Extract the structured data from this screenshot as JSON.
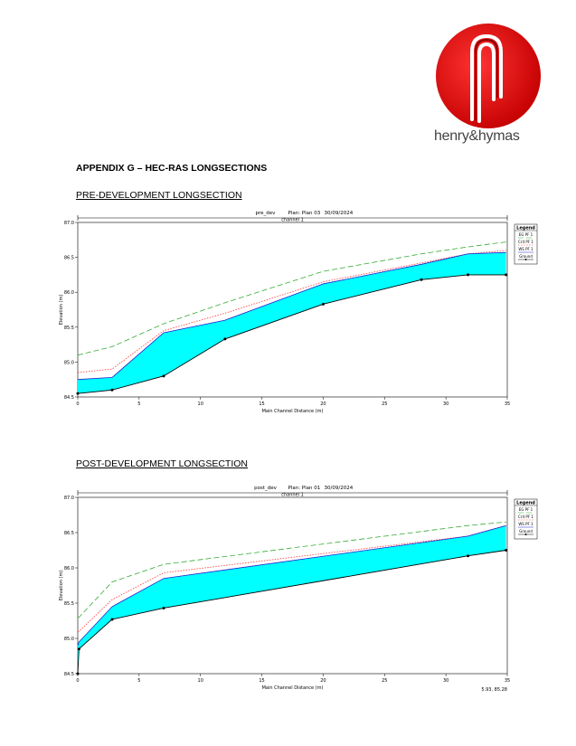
{
  "brand": {
    "name": "henry&hymas"
  },
  "heading": "APPENDIX G – HEC-RAS LONGSECTIONS",
  "sections": [
    {
      "title": "PRE-DEVELOPMENT LONGSECTION"
    },
    {
      "title": "POST-DEVELOPMENT LONGSECTION"
    }
  ],
  "chart_data": [
    {
      "type": "line",
      "header": {
        "plan_name": "pre_dev",
        "plan": "Plan: Plan 03",
        "date": "30/09/2024"
      },
      "channel_label": "channel 1",
      "xlabel": "Main Channel Distance (m)",
      "ylabel": "Elevation (m)",
      "xlim": [
        0,
        35
      ],
      "ylim": [
        84.5,
        87.0
      ],
      "xticks": [
        "0",
        "5",
        "10",
        "15",
        "20",
        "25",
        "30",
        "35"
      ],
      "yticks": [
        "84.5",
        "85.0",
        "85.5",
        "86.0",
        "86.5",
        "87.0"
      ],
      "legend_title": "Legend",
      "legend_position": "top-right",
      "series": [
        {
          "name": "EG PF 1",
          "color": "#33aa33",
          "style": "long-dash",
          "x": [
            0,
            2.8,
            7,
            12,
            20,
            28,
            31.8,
            34.9
          ],
          "y": [
            85.1,
            85.22,
            85.55,
            85.85,
            86.3,
            86.55,
            86.65,
            86.72
          ]
        },
        {
          "name": "Crit PF 1",
          "color": "#ff3333",
          "style": "dotted",
          "x": [
            0,
            2.8,
            7,
            12,
            20,
            28,
            31.8,
            34.9
          ],
          "y": [
            84.85,
            84.9,
            85.45,
            85.7,
            86.15,
            86.42,
            86.55,
            86.6
          ]
        },
        {
          "name": "WS PF 1",
          "color": "#2222cc",
          "style": "solid",
          "x": [
            0,
            2.8,
            7,
            12,
            20,
            28,
            31.8,
            34.9
          ],
          "y": [
            84.75,
            84.78,
            85.42,
            85.6,
            86.12,
            86.4,
            86.55,
            86.57
          ]
        },
        {
          "name": "Ground",
          "color": "#000000",
          "style": "solid-marker",
          "x": [
            0,
            2.8,
            7,
            12,
            20,
            28,
            31.8,
            34.9
          ],
          "y": [
            84.55,
            84.6,
            84.8,
            85.33,
            85.83,
            86.18,
            86.25,
            86.25
          ]
        }
      ],
      "fill_between": [
        "Ground",
        "WS PF 1"
      ],
      "fill_color": "#00ffff"
    },
    {
      "type": "line",
      "header": {
        "plan_name": "post_dev",
        "plan": "Plan: Plan 01",
        "date": "30/09/2024"
      },
      "channel_label": "channel 1",
      "xlabel": "Main Channel Distance (m)",
      "ylabel": "Elevation (m)",
      "xlim": [
        0,
        35
      ],
      "ylim": [
        84.5,
        87.0
      ],
      "xticks": [
        "0",
        "5",
        "10",
        "15",
        "20",
        "25",
        "30",
        "35"
      ],
      "yticks": [
        "84.5",
        "85.0",
        "85.5",
        "86.0",
        "86.5",
        "87.0"
      ],
      "legend_title": "Legend",
      "legend_position": "top-right",
      "corner_text": "5.93, 85.28",
      "series": [
        {
          "name": "EG PF 1",
          "color": "#33aa33",
          "style": "long-dash",
          "x": [
            0,
            0.1,
            2.8,
            7,
            31.8,
            34.9
          ],
          "y": [
            85.3,
            85.3,
            85.8,
            86.05,
            86.6,
            86.65
          ]
        },
        {
          "name": "Crit PF 1",
          "color": "#ff3333",
          "style": "dotted",
          "x": [
            0,
            0.1,
            2.8,
            7,
            31.8,
            34.9
          ],
          "y": [
            85.1,
            85.1,
            85.55,
            85.93,
            86.45,
            86.6
          ]
        },
        {
          "name": "WS PF 1",
          "color": "#2222cc",
          "style": "solid",
          "x": [
            0,
            0.1,
            2.8,
            7,
            31.8,
            34.9
          ],
          "y": [
            84.9,
            84.95,
            85.45,
            85.85,
            86.45,
            86.6
          ]
        },
        {
          "name": "Ground",
          "color": "#000000",
          "style": "solid-marker",
          "x": [
            0,
            0.1,
            2.8,
            7,
            31.8,
            34.9
          ],
          "y": [
            84.5,
            84.85,
            85.27,
            85.43,
            86.17,
            86.25
          ]
        }
      ],
      "fill_between": [
        "Ground",
        "WS PF 1"
      ],
      "fill_color": "#00ffff"
    }
  ]
}
